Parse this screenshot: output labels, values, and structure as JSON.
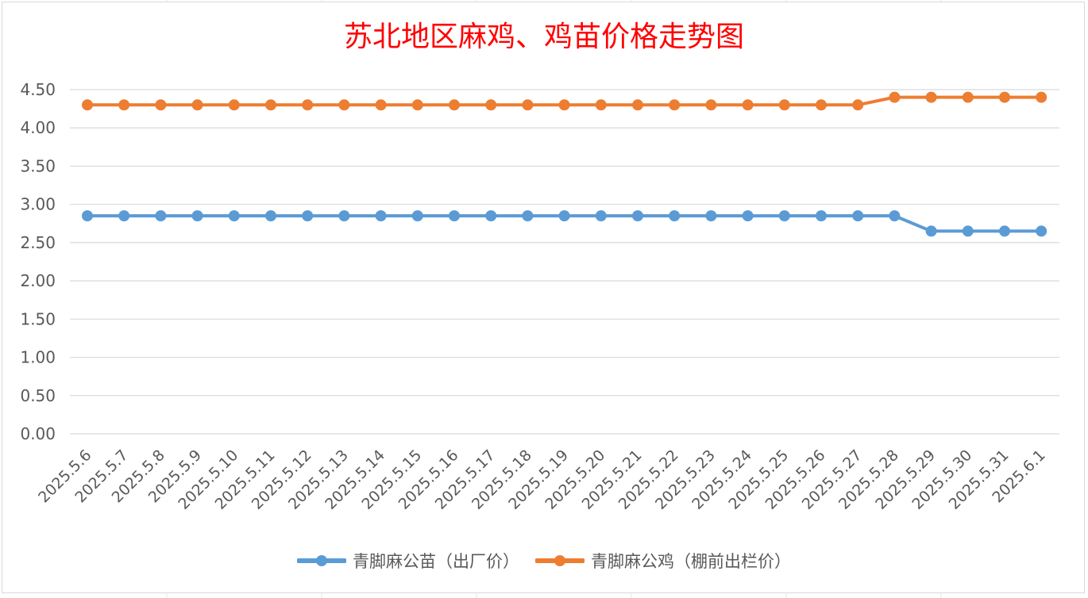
{
  "chart_data": {
    "type": "line",
    "title": "苏北地区麻鸡、鸡苗价格走势图",
    "xlabel": "",
    "ylabel": "",
    "categories": [
      "2025.5.6",
      "2025.5.7",
      "2025.5.8",
      "2025.5.9",
      "2025.5.10",
      "2025.5.11",
      "2025.5.12",
      "2025.5.13",
      "2025.5.14",
      "2025.5.15",
      "2025.5.16",
      "2025.5.17",
      "2025.5.18",
      "2025.5.19",
      "2025.5.20",
      "2025.5.21",
      "2025.5.22",
      "2025.5.23",
      "2025.5.24",
      "2025.5.25",
      "2025.5.26",
      "2025.5.27",
      "2025.5.28",
      "2025.5.29",
      "2025.5.30",
      "2025.5.31",
      "2025.6.1"
    ],
    "y_ticks": [
      "0.00",
      "0.50",
      "1.00",
      "1.50",
      "2.00",
      "2.50",
      "3.00",
      "3.50",
      "4.00",
      "4.50"
    ],
    "ylim": [
      0,
      4.5
    ],
    "grid": true,
    "legend_position": "bottom",
    "series": [
      {
        "name": "青脚麻公苗（出厂价）",
        "color": "#5b9bd5",
        "values": [
          2.85,
          2.85,
          2.85,
          2.85,
          2.85,
          2.85,
          2.85,
          2.85,
          2.85,
          2.85,
          2.85,
          2.85,
          2.85,
          2.85,
          2.85,
          2.85,
          2.85,
          2.85,
          2.85,
          2.85,
          2.85,
          2.85,
          2.85,
          2.65,
          2.65,
          2.65,
          2.65
        ]
      },
      {
        "name": "青脚麻公鸡（棚前出栏价）",
        "color": "#ed7d31",
        "values": [
          4.3,
          4.3,
          4.3,
          4.3,
          4.3,
          4.3,
          4.3,
          4.3,
          4.3,
          4.3,
          4.3,
          4.3,
          4.3,
          4.3,
          4.3,
          4.3,
          4.3,
          4.3,
          4.3,
          4.3,
          4.3,
          4.3,
          4.4,
          4.4,
          4.4,
          4.4,
          4.4
        ]
      }
    ]
  }
}
